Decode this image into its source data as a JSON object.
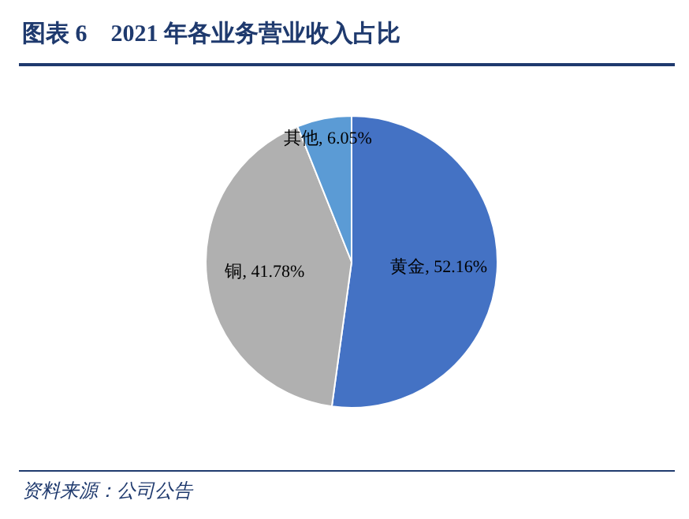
{
  "chart_data": {
    "type": "pie",
    "title": "图表 6　2021 年各业务营业收入占比",
    "categories": [
      "黄金",
      "铜",
      "其他"
    ],
    "values": [
      52.16,
      41.78,
      6.05
    ],
    "colors": [
      "#4472c4",
      "#b0b0b0",
      "#5b9bd5"
    ],
    "value_labels": [
      ", 52.16%",
      ", 41.78%",
      ", 6.05%"
    ],
    "legend": false,
    "annotations": [
      "资料来源：公司公告"
    ]
  }
}
